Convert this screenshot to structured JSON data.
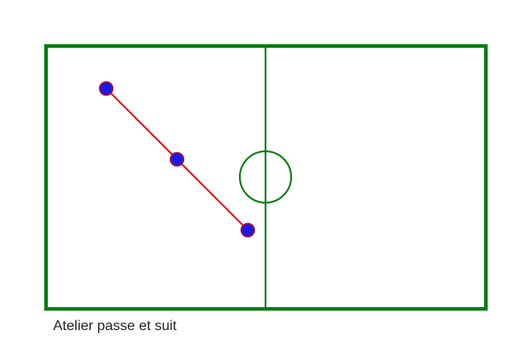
{
  "caption": "Atelier passe et suit",
  "colors": {
    "pitch_lines": "#0a7d12",
    "center_line": "#0a7d12",
    "pass_line": "#e01515",
    "player_fill": "#1a1ae6",
    "player_stroke": "#b0122a"
  },
  "players": [
    {
      "id": "player-1",
      "icon": "player-marker"
    },
    {
      "id": "player-2",
      "icon": "player-marker"
    },
    {
      "id": "player-3",
      "icon": "player-marker"
    }
  ]
}
